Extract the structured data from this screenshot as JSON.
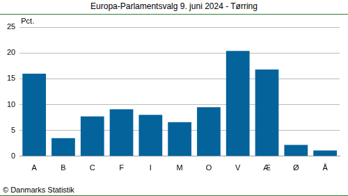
{
  "chart_data": {
    "type": "bar",
    "title": "Europa-Parlamentsvalg 9. juni 2024 - Tørring",
    "ylabel": "Pct.",
    "annotations": [
      "© Danmarks Statistik"
    ],
    "categories": [
      "A",
      "B",
      "C",
      "F",
      "I",
      "M",
      "O",
      "V",
      "Æ",
      "Ø",
      "Å"
    ],
    "values": [
      16.0,
      3.5,
      7.7,
      9.1,
      8.0,
      6.6,
      9.5,
      20.4,
      16.8,
      2.2,
      1.1
    ],
    "color": "#04639b",
    "ylim": [
      0,
      25
    ],
    "yticks": [
      0,
      5,
      10,
      15,
      20,
      25
    ],
    "grid": true
  }
}
